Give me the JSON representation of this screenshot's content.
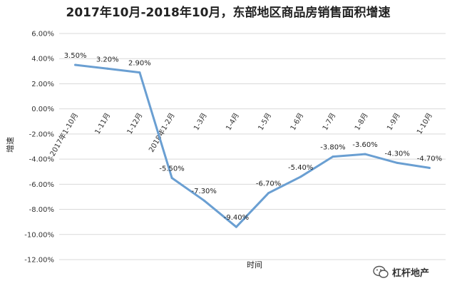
{
  "watermark": {
    "text": "杠杆地产",
    "icon": "wechat-icon"
  },
  "chart_data": {
    "type": "line",
    "title": "2017年10月-2018年10月，东部地区商品房销售面积增速",
    "xlabel": "时间",
    "ylabel": "增速",
    "ylim": [
      -12,
      6
    ],
    "ytick_step": 2,
    "ytick_labels": [
      "6.00%",
      "4.00%",
      "2.00%",
      "0.00%",
      "-2.00%",
      "-4.00%",
      "-6.00%",
      "-8.00%",
      "-10.00%",
      "-12.00%"
    ],
    "grid": true,
    "legend": "none",
    "line_color": "#6a9fd2",
    "categories": [
      "2017年1-10月",
      "1-11月",
      "1-12月",
      "2018年1-2月",
      "1-3月",
      "1-4月",
      "1-5月",
      "1-6月",
      "1-7月",
      "1-8月",
      "1-9月",
      "1-10月"
    ],
    "series": [
      {
        "values": [
          3.5,
          3.2,
          2.9,
          -5.5,
          -7.3,
          -9.4,
          -6.7,
          -5.4,
          -3.8,
          -3.6,
          -4.3,
          -4.7
        ],
        "labels": [
          "3.50%",
          "3.20%",
          "2.90%",
          "-5.50%",
          "-7.30%",
          "-9.40%",
          "-6.70%",
          "-5.40%",
          "-3.80%",
          "-3.60%",
          "-4.30%",
          "-4.70%"
        ]
      }
    ]
  }
}
